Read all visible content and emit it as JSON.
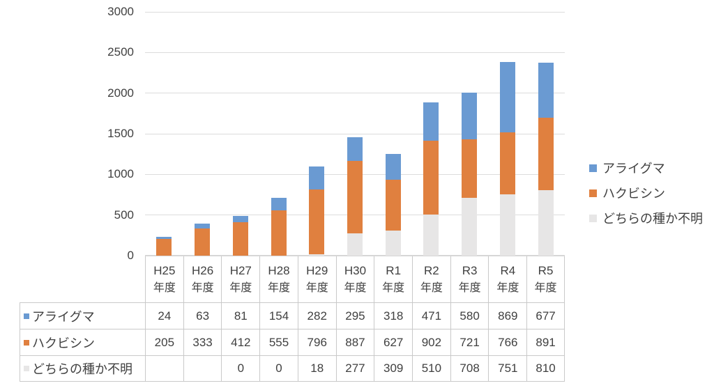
{
  "chart_data": {
    "type": "bar",
    "variant": "stacked-column",
    "title": "",
    "categories": [
      "H25",
      "H26",
      "H27",
      "H28",
      "H29",
      "H30",
      "R1",
      "R2",
      "R3",
      "R4",
      "R5"
    ],
    "category_suffix": "年度",
    "series": [
      {
        "name": "アライグマ",
        "color": "#6A9AD2",
        "values": [
          24,
          63,
          81,
          154,
          282,
          295,
          318,
          471,
          580,
          869,
          677
        ]
      },
      {
        "name": "ハクビシン",
        "color": "#E0803F",
        "values": [
          205,
          333,
          412,
          555,
          796,
          887,
          627,
          902,
          721,
          766,
          891
        ]
      },
      {
        "name": "どちらの種か不明",
        "color": "#E7E6E6",
        "values": [
          null,
          null,
          0,
          0,
          18,
          277,
          309,
          510,
          708,
          751,
          810
        ]
      }
    ],
    "stack_order_bottom_to_top": [
      "どちらの種か不明",
      "ハクビシン",
      "アライグマ"
    ],
    "ylim": [
      0,
      3000
    ],
    "yticks": [
      0,
      500,
      1000,
      1500,
      2000,
      2500,
      3000
    ],
    "grid": true,
    "legend_position": "right-middle",
    "data_table_shown": true,
    "blank_cells_note": "first two cells of どちらの種か不明 row are empty"
  },
  "colors": {
    "text": "#404040",
    "gridline": "#DCDCDC",
    "axis_line": "#D6D6D6",
    "table_border": "#C9C9C9",
    "background": "#FFFFFF"
  }
}
